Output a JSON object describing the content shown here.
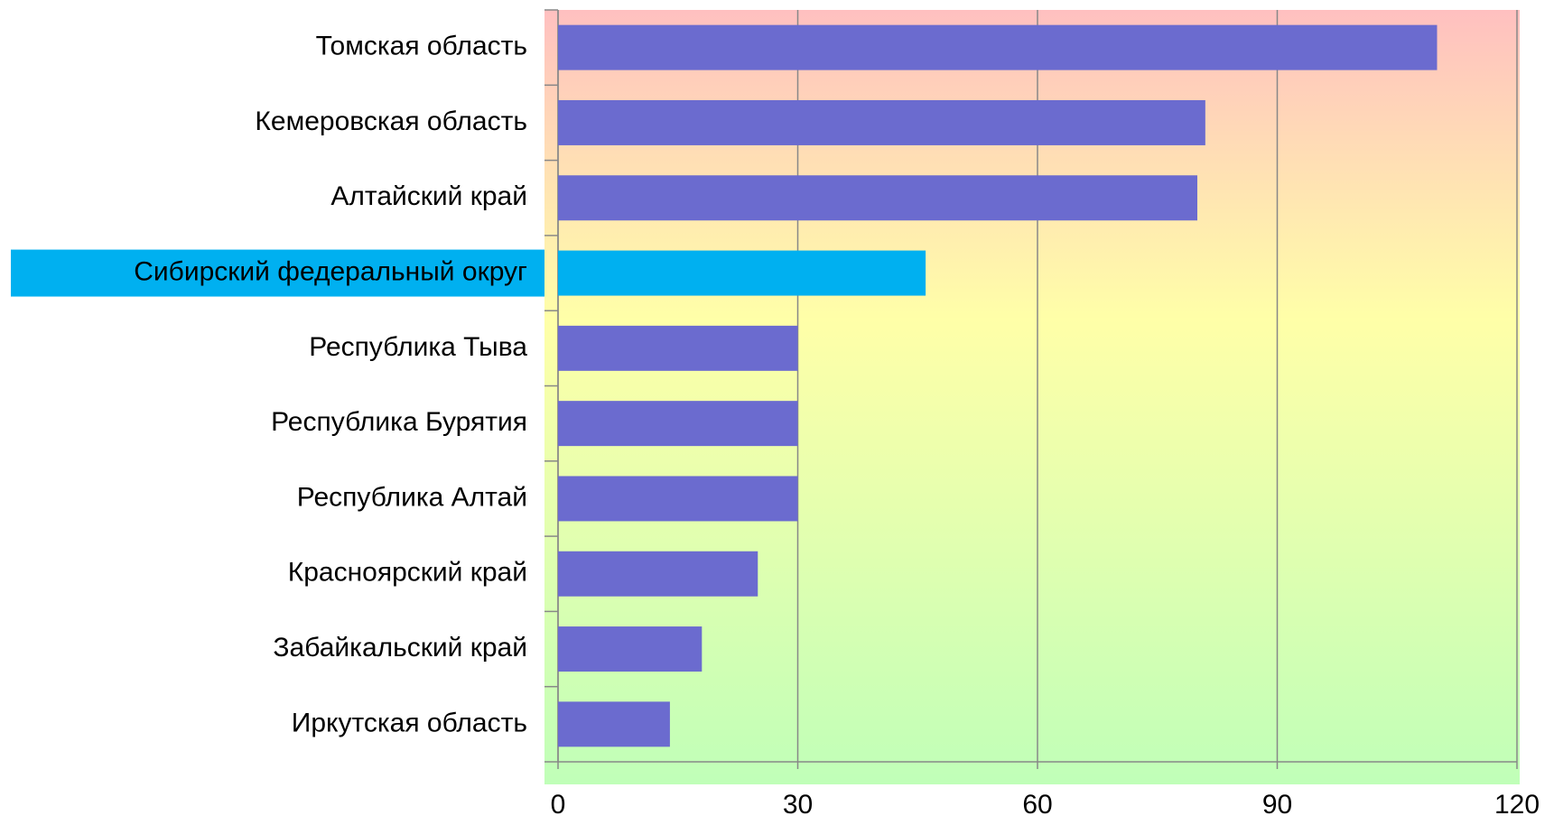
{
  "chart_data": {
    "type": "barh",
    "categories": [
      "Томская область",
      "Кемеровская область",
      "Алтайский край",
      "Сибирский федеральный округ",
      "Республика Тыва",
      "Республика Бурятия",
      "Республика Алтай",
      "Красноярский край",
      "Забайкальский край",
      "Иркутская область"
    ],
    "values": [
      110,
      81,
      80,
      46,
      30,
      30,
      30,
      25,
      18,
      14
    ],
    "colors": [
      "#6b6bcf",
      "#6b6bcf",
      "#6b6bcf",
      "#00b0f0",
      "#6b6bcf",
      "#6b6bcf",
      "#6b6bcf",
      "#6b6bcf",
      "#6b6bcf",
      "#6b6bcf"
    ],
    "highlight_color": "#00b0f0",
    "xlim": [
      0,
      120
    ],
    "xticks": [
      0,
      30,
      60,
      90,
      120
    ],
    "grid": true
  }
}
